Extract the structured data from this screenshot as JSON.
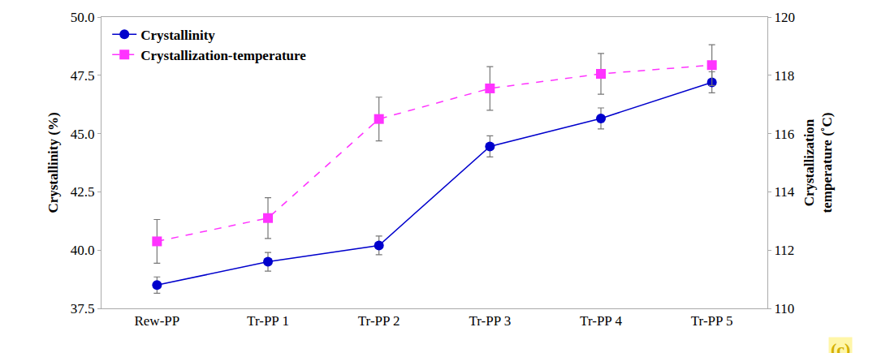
{
  "chart_data": {
    "type": "line",
    "categories": [
      "Rew-PP",
      "Tr-PP 1",
      "Tr-PP 2",
      "Tr-PP 3",
      "Tr-PP 4",
      "Tr-PP 5"
    ],
    "series": [
      {
        "name": "Crystallinity",
        "color": "#0000cc",
        "marker": "circle",
        "line_style": "solid",
        "values": [
          38.5,
          39.5,
          40.2,
          44.45,
          45.65,
          47.2
        ],
        "errors": [
          0.35,
          0.4,
          0.4,
          0.45,
          0.45,
          0.45
        ]
      },
      {
        "name": "Crystallization-temperature",
        "color": "#ff33ff",
        "marker": "square",
        "line_style": "dash",
        "axis": "y2",
        "values": [
          112.3,
          113.1,
          116.5,
          117.55,
          118.05,
          118.35
        ],
        "errors": [
          0.75,
          0.7,
          0.75,
          0.75,
          0.7,
          0.7
        ]
      }
    ],
    "y_label": "Crystallinity (%)",
    "y2_label": "Crystallization temperature (˚C)",
    "ylim": [
      37.5,
      50
    ],
    "yticks": [
      37.5,
      {
        "value": 40,
        "label": "40.0"
      },
      42.5,
      {
        "value": 45,
        "label": "45.0"
      },
      47.5,
      {
        "value": 50,
        "label": "50.0"
      }
    ],
    "y2lim": [
      110,
      120
    ],
    "y2ticks": [
      110,
      112,
      114,
      116,
      118,
      120
    ],
    "legend": "top-left",
    "grid": false,
    "annotations": [
      {
        "text": "(c)"
      }
    ]
  }
}
